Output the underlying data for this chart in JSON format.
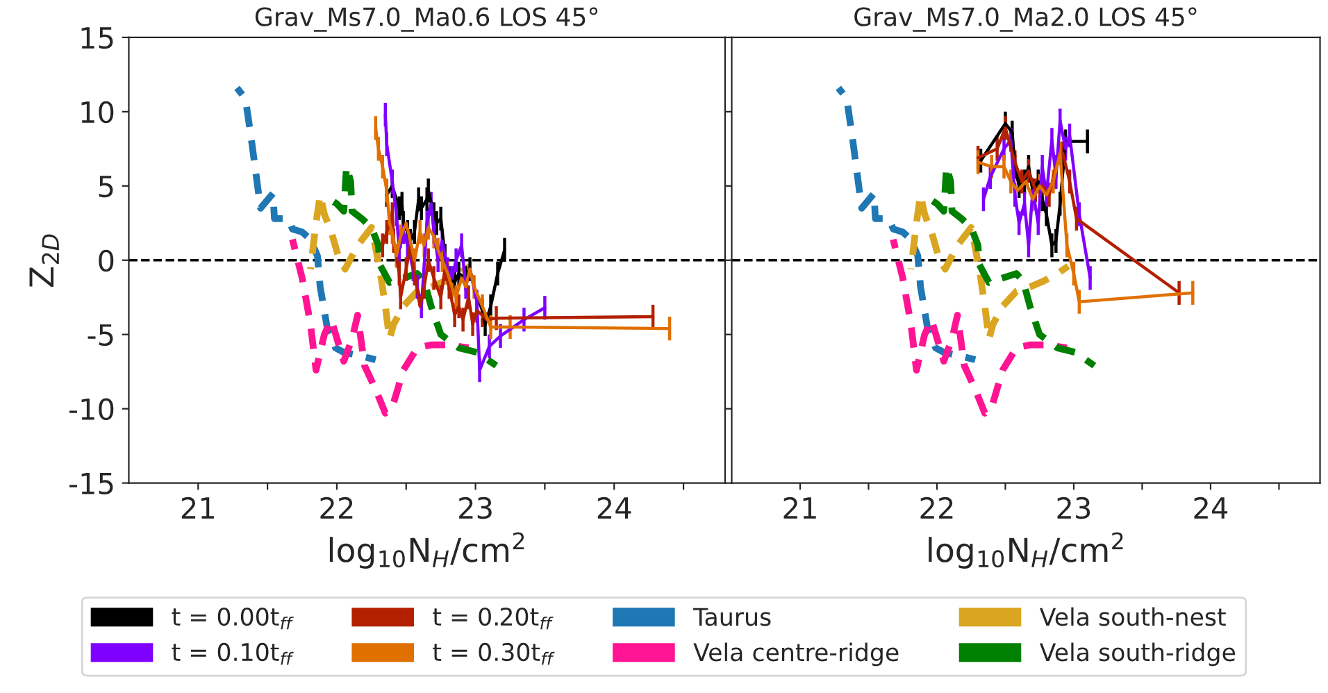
{
  "chart_data": [
    {
      "type": "line",
      "title": "Grav_Ms7.0_Ma0.6 LOS 45°",
      "xlabel": "log$_{10}$N$_{H}$/cm$^{2}$",
      "ylabel": "Z$_{2D}$",
      "xlim": [
        20.5,
        24.8
      ],
      "ylim": [
        -15,
        15
      ],
      "xticks": [
        21,
        {
          "value": 21.5,
          "label": null
        },
        22,
        {
          "value": 22.5,
          "label": null
        },
        23,
        {
          "value": 23.5,
          "label": null
        },
        24,
        {
          "value": 24.5,
          "label": null
        }
      ],
      "yticks": [
        -15,
        -10,
        -5,
        0,
        5,
        10,
        15
      ],
      "grid": false,
      "legend": "bottom",
      "marker": "none",
      "ref_lines": [
        {
          "axis": "y",
          "value": 0,
          "color": "#000000",
          "line_style": "dashed"
        }
      ],
      "series": [
        {
          "name": "t = 0.00t$_{ff}$",
          "color": "#000000",
          "line_style": "solid",
          "x": [
            22.36,
            22.4,
            22.45,
            22.47,
            22.48,
            22.51,
            22.53,
            22.56,
            22.59,
            22.61,
            22.65,
            22.66,
            22.7,
            22.72,
            22.75,
            22.78,
            22.81,
            22.85,
            22.88,
            22.93,
            22.96,
            22.99,
            23.05,
            23.07,
            23.11,
            23.16,
            23.21
          ],
          "values": [
            4.4,
            5.0,
            3.5,
            3.8,
            2.5,
            1.9,
            1.3,
            1.9,
            4.1,
            3.5,
            4.1,
            4.7,
            3.1,
            2.5,
            2.8,
            0.3,
            -1.2,
            -1.5,
            -0.9,
            -1.2,
            -0.6,
            -1.8,
            -3.4,
            -4.3,
            -3.1,
            -0.9,
            0.7
          ],
          "errors": [
            0.8,
            0.8,
            0.8,
            0.8,
            0.8,
            0.8,
            0.8,
            0.8,
            0.8,
            0.8,
            0.8,
            0.8,
            0.8,
            0.8,
            0.8,
            0.8,
            0.8,
            0.8,
            0.8,
            0.8,
            0.8,
            null,
            0.8,
            0.8,
            0.8,
            0.8,
            0.8
          ]
        },
        {
          "name": "t = 0.10t$_{ff}$",
          "color": "#8000ff",
          "line_style": "solid",
          "x": [
            22.35,
            22.36,
            22.4,
            22.43,
            22.45,
            22.48,
            22.51,
            22.55,
            22.58,
            22.61,
            22.65,
            22.68,
            22.7,
            22.73,
            22.76,
            22.8,
            22.83,
            22.86,
            22.9,
            22.93,
            22.96,
            23.01,
            23.03,
            23.1,
            23.18,
            23.35,
            23.5
          ],
          "values": [
            9.8,
            7.8,
            5.3,
            3.1,
            0.7,
            1.9,
            1.0,
            -0.6,
            -1.8,
            -3.1,
            2.5,
            3.8,
            1.9,
            0.0,
            1.3,
            -0.6,
            -1.2,
            0.0,
            1.0,
            -1.8,
            -0.6,
            -2.8,
            -7.4,
            -5.8,
            -5.1,
            -4.0,
            -3.2
          ],
          "errors": [
            0.8,
            0.8,
            0.8,
            0.8,
            0.8,
            0.8,
            0.8,
            0.8,
            0.8,
            0.8,
            0.8,
            0.8,
            0.8,
            0.8,
            0.8,
            0.8,
            0.8,
            0.8,
            0.8,
            0.8,
            null,
            0.8,
            0.8,
            0.8,
            0.8,
            0.8,
            0.8
          ]
        },
        {
          "name": "t = 0.20t$_{ff}$",
          "color": "#b22000",
          "line_style": "solid",
          "x": [
            22.33,
            22.36,
            22.4,
            22.41,
            22.45,
            22.46,
            22.5,
            22.53,
            22.56,
            22.6,
            22.63,
            22.66,
            22.7,
            22.75,
            22.78,
            22.81,
            22.85,
            22.88,
            22.91,
            22.95,
            22.98,
            23.01,
            23.05,
            23.08,
            23.15,
            24.28
          ],
          "values": [
            1.0,
            1.9,
            3.1,
            1.3,
            -0.9,
            -2.5,
            -0.6,
            1.0,
            -0.9,
            -3.1,
            -1.8,
            0.0,
            -1.2,
            -2.5,
            -0.6,
            -1.8,
            -3.7,
            -3.1,
            -4.0,
            -2.5,
            -4.3,
            -3.4,
            -3.7,
            -4.0,
            -3.9,
            -3.8
          ],
          "errors": [
            0.8,
            0.8,
            0.8,
            0.8,
            0.8,
            0.8,
            0.8,
            0.8,
            0.8,
            null,
            0.8,
            0.8,
            0.8,
            0.8,
            0.8,
            0.8,
            0.8,
            0.8,
            0.8,
            0.8,
            0.8,
            0.8,
            0.8,
            null,
            0.8,
            0.8
          ]
        },
        {
          "name": "t = 0.30t$_{ff}$",
          "color": "#e07000",
          "line_style": "solid",
          "x": [
            22.28,
            22.3,
            22.33,
            22.36,
            22.38,
            22.4,
            22.43,
            22.46,
            22.5,
            22.53,
            22.56,
            22.6,
            22.63,
            22.66,
            22.7,
            22.73,
            22.76,
            22.8,
            22.83,
            22.86,
            22.9,
            22.93,
            22.96,
            22.99,
            23.05,
            23.11,
            23.25,
            24.4
          ],
          "values": [
            8.9,
            7.5,
            6.3,
            4.7,
            2.5,
            1.9,
            0.3,
            1.6,
            2.5,
            1.3,
            0.0,
            1.9,
            1.0,
            2.2,
            1.6,
            0.7,
            0.0,
            -0.9,
            -1.8,
            -2.5,
            -1.2,
            -1.8,
            -0.6,
            -1.8,
            -3.1,
            -4.5,
            -4.5,
            -4.6
          ],
          "errors": [
            0.8,
            0.8,
            0.8,
            0.8,
            0.8,
            0.8,
            0.8,
            0.8,
            null,
            null,
            0.8,
            0.8,
            0.8,
            0.8,
            0.8,
            0.8,
            0.8,
            0.8,
            0.8,
            0.8,
            null,
            null,
            null,
            0.8,
            0.8,
            0.8,
            0.8,
            0.8
          ]
        },
        {
          "name": "Taurus",
          "color": "#1f77b4",
          "line_style": "dashed",
          "x": [
            21.28,
            21.34,
            21.38,
            21.45,
            21.54,
            21.55,
            21.65,
            21.68,
            21.75,
            21.81,
            21.86,
            21.88,
            21.93,
            21.99,
            22.05,
            22.15,
            22.28
          ],
          "values": [
            11.6,
            10.9,
            8.4,
            3.5,
            4.5,
            2.8,
            2.8,
            2.1,
            1.9,
            1.4,
            0.3,
            -1.8,
            -4.5,
            -5.9,
            -6.2,
            -6.4,
            -6.7
          ]
        },
        {
          "name": "Vela centre-ridge",
          "color": "#ff1493",
          "line_style": "dashed",
          "x": [
            21.68,
            21.75,
            21.81,
            21.85,
            21.91,
            21.96,
            22.05,
            22.11,
            22.15,
            22.2,
            22.28,
            22.35,
            22.4,
            22.48,
            22.58,
            22.68,
            22.81,
            22.95
          ],
          "values": [
            1.4,
            -1.2,
            -4.3,
            -7.4,
            -5.0,
            -4.0,
            -6.8,
            -5.3,
            -3.7,
            -7.1,
            -8.7,
            -10.3,
            -9.9,
            -7.4,
            -5.9,
            -5.7,
            -5.7,
            -5.9
          ]
        },
        {
          "name": "Vela south-nest",
          "color": "#daa520",
          "line_style": "dashed",
          "x": [
            21.81,
            21.85,
            21.88,
            21.91,
            21.96,
            22.01,
            22.06,
            22.15,
            22.25,
            22.31,
            22.35,
            22.38,
            22.41,
            22.48,
            22.58,
            22.68,
            22.78,
            22.88,
            22.96
          ],
          "values": [
            -0.6,
            2.5,
            4.4,
            3.1,
            1.9,
            0.3,
            -0.6,
            1.0,
            2.2,
            -0.6,
            -3.1,
            -5.3,
            -4.3,
            -3.1,
            -2.1,
            -1.8,
            -1.4,
            -0.9,
            -0.4
          ]
        },
        {
          "name": "Vela south-ridge",
          "color": "#008000",
          "line_style": "dashed",
          "x": [
            21.95,
            22.0,
            22.05,
            22.07,
            22.1,
            22.11,
            22.18,
            22.25,
            22.3,
            22.31,
            22.38,
            22.48,
            22.58,
            22.63,
            22.68,
            22.75,
            22.88,
            23.01,
            23.15
          ],
          "values": [
            4.1,
            3.8,
            3.3,
            6.3,
            5.3,
            3.3,
            2.8,
            2.2,
            1.0,
            -0.3,
            -1.5,
            -1.2,
            -0.9,
            -1.4,
            -3.1,
            -5.0,
            -5.9,
            -6.2,
            -7.1
          ]
        }
      ]
    },
    {
      "type": "line",
      "title": "Grav_Ms7.0_Ma2.0 LOS 45°",
      "xlabel": "log$_{10}$N$_{H}$/cm$^{2}$",
      "xlim": [
        20.5,
        24.8
      ],
      "ylim": [
        -15,
        15
      ],
      "xticks": [
        21,
        {
          "value": 21.5,
          "label": null
        },
        22,
        {
          "value": 22.5,
          "label": null
        },
        23,
        {
          "value": 23.5,
          "label": null
        },
        24,
        {
          "value": 24.5,
          "label": null
        }
      ],
      "yticks": [
        -15,
        -10,
        -5,
        0,
        5,
        10,
        15
      ],
      "tick_labels": "x",
      "grid": false,
      "marker": "none",
      "ref_lines": [
        {
          "axis": "y",
          "value": 0,
          "color": "#000000",
          "line_style": "dashed"
        }
      ],
      "series": [
        {
          "name": "t = 0.00t$_{ff}$",
          "color": "#000000",
          "line_style": "solid",
          "x": [
            22.32,
            22.5,
            22.55,
            22.57,
            22.6,
            22.64,
            22.67,
            22.7,
            22.74,
            22.77,
            22.8,
            22.84,
            22.87,
            22.9,
            22.94,
            23.1
          ],
          "values": [
            6.7,
            9.2,
            8.6,
            6.3,
            5.0,
            5.3,
            6.3,
            4.7,
            5.3,
            4.1,
            3.1,
            1.0,
            1.3,
            3.8,
            8.0,
            8.0
          ],
          "errors": [
            0.8,
            0.8,
            0.8,
            0.8,
            0.8,
            0.8,
            0.8,
            0.8,
            0.8,
            0.8,
            0.8,
            0.8,
            0.8,
            0.8,
            0.8,
            0.8
          ]
        },
        {
          "name": "t = 0.10t$_{ff}$",
          "color": "#8000ff",
          "line_style": "solid",
          "x": [
            22.34,
            22.39,
            22.49,
            22.54,
            22.57,
            22.6,
            22.64,
            22.67,
            22.7,
            22.74,
            22.77,
            22.8,
            22.84,
            22.87,
            22.9,
            22.94,
            22.97,
            23.04,
            23.12
          ],
          "values": [
            4.1,
            5.6,
            7.5,
            8.1,
            4.4,
            2.5,
            3.8,
            1.0,
            4.7,
            2.5,
            6.3,
            4.4,
            8.1,
            5.6,
            9.4,
            7.5,
            8.4,
            3.1,
            -1.2
          ],
          "errors": [
            0.8,
            0.8,
            0.8,
            0.8,
            0.8,
            0.8,
            0.8,
            0.8,
            null,
            0.8,
            0.8,
            0.8,
            0.8,
            0.8,
            0.8,
            0.8,
            0.8,
            0.8,
            0.8
          ]
        },
        {
          "name": "t = 0.20t$_{ff}$",
          "color": "#b22000",
          "line_style": "solid",
          "x": [
            22.3,
            22.44,
            22.5,
            22.57,
            22.62,
            22.67,
            22.72,
            22.77,
            22.82,
            22.87,
            22.92,
            22.97,
            23.02,
            23.77
          ],
          "values": [
            6.9,
            7.5,
            8.9,
            6.6,
            5.3,
            6.0,
            4.7,
            5.0,
            4.4,
            6.3,
            7.2,
            5.3,
            2.8,
            -2.2
          ],
          "errors": [
            0.8,
            0.8,
            0.8,
            0.8,
            0.8,
            0.8,
            0.8,
            0.8,
            0.8,
            0.8,
            0.8,
            0.8,
            0.8,
            0.8
          ]
        },
        {
          "name": "t = 0.30t$_{ff}$",
          "color": "#e07000",
          "line_style": "solid",
          "x": [
            22.3,
            22.4,
            22.49,
            22.54,
            22.59,
            22.65,
            22.7,
            22.75,
            22.8,
            22.85,
            22.9,
            22.95,
            23.0,
            23.04,
            23.87
          ],
          "values": [
            6.6,
            6.3,
            6.3,
            5.3,
            4.7,
            5.3,
            4.1,
            5.0,
            4.4,
            5.3,
            7.2,
            1.0,
            -0.9,
            -2.8,
            -2.2
          ],
          "errors": [
            0.8,
            0.8,
            0.8,
            0.8,
            null,
            null,
            0.8,
            0.8,
            null,
            0.8,
            0.8,
            0.8,
            0.8,
            0.8,
            0.8
          ]
        },
        {
          "name": "Taurus",
          "color": "#1f77b4",
          "line_style": "dashed",
          "x": [
            21.28,
            21.34,
            21.38,
            21.45,
            21.54,
            21.55,
            21.65,
            21.68,
            21.75,
            21.81,
            21.86,
            21.88,
            21.93,
            21.99,
            22.05,
            22.15,
            22.28
          ],
          "values": [
            11.6,
            10.9,
            8.4,
            3.5,
            4.5,
            2.8,
            2.8,
            2.1,
            1.9,
            1.4,
            0.3,
            -1.8,
            -4.5,
            -5.9,
            -6.2,
            -6.4,
            -6.7
          ]
        },
        {
          "name": "Vela centre-ridge",
          "color": "#ff1493",
          "line_style": "dashed",
          "x": [
            21.68,
            21.75,
            21.81,
            21.85,
            21.91,
            21.96,
            22.05,
            22.11,
            22.15,
            22.2,
            22.28,
            22.35,
            22.4,
            22.48,
            22.58,
            22.68,
            22.81,
            22.95
          ],
          "values": [
            1.4,
            -1.2,
            -4.3,
            -7.4,
            -5.0,
            -4.0,
            -6.8,
            -5.3,
            -3.7,
            -7.1,
            -8.7,
            -10.3,
            -9.9,
            -7.4,
            -5.9,
            -5.7,
            -5.7,
            -5.9
          ]
        },
        {
          "name": "Vela south-nest",
          "color": "#daa520",
          "line_style": "dashed",
          "x": [
            21.81,
            21.85,
            21.88,
            21.91,
            21.96,
            22.01,
            22.06,
            22.15,
            22.25,
            22.31,
            22.35,
            22.38,
            22.41,
            22.48,
            22.58,
            22.68,
            22.78,
            22.88,
            22.96
          ],
          "values": [
            -0.6,
            2.5,
            4.4,
            3.1,
            1.9,
            0.3,
            -0.6,
            1.0,
            2.2,
            -0.6,
            -3.1,
            -5.3,
            -4.3,
            -3.1,
            -2.1,
            -1.8,
            -1.4,
            -0.9,
            -0.4
          ]
        },
        {
          "name": "Vela south-ridge",
          "color": "#008000",
          "line_style": "dashed",
          "x": [
            21.95,
            22.0,
            22.05,
            22.07,
            22.1,
            22.11,
            22.18,
            22.25,
            22.3,
            22.31,
            22.38,
            22.48,
            22.58,
            22.63,
            22.68,
            22.75,
            22.88,
            23.01,
            23.15
          ],
          "values": [
            4.1,
            3.8,
            3.3,
            6.3,
            5.3,
            3.3,
            2.8,
            2.2,
            1.0,
            -0.3,
            -1.5,
            -1.2,
            -0.9,
            -1.4,
            -3.1,
            -5.0,
            -5.9,
            -6.2,
            -7.1
          ]
        }
      ]
    }
  ]
}
